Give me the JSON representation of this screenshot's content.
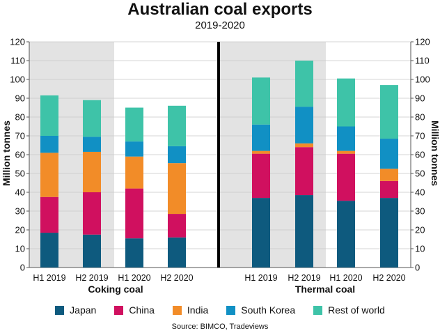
{
  "title": "Australian coal exports",
  "subtitle": "2019-2020",
  "source": "Source: BIMCO, Tradeviews",
  "colors": {
    "Japan": "#0e5a7e",
    "China": "#d0105f",
    "India": "#f28c28",
    "South Korea": "#1190c4",
    "Rest of world": "#3ec3a8"
  },
  "chart_data": {
    "type": "bar",
    "stacked": true,
    "ylabel": "Million tonnes",
    "ylim": [
      0,
      120
    ],
    "yticks": [
      0,
      10,
      20,
      30,
      40,
      50,
      60,
      70,
      80,
      90,
      100,
      110,
      120
    ],
    "series_names": [
      "Japan",
      "China",
      "India",
      "South Korea",
      "Rest of world"
    ],
    "panels": [
      {
        "group_label": "Coking coal",
        "categories": [
          "H1 2019",
          "H2 2019",
          "H1 2020",
          "H2 2020"
        ],
        "series": [
          {
            "name": "Japan",
            "values": [
              18.5,
              17.5,
              15.5,
              16
            ]
          },
          {
            "name": "China",
            "values": [
              19,
              22.5,
              26.5,
              12.5
            ]
          },
          {
            "name": "India",
            "values": [
              23.5,
              21.5,
              17,
              27
            ]
          },
          {
            "name": "South Korea",
            "values": [
              9,
              8,
              8,
              9
            ]
          },
          {
            "name": "Rest of world",
            "values": [
              21.5,
              19.5,
              18,
              21.5
            ]
          }
        ]
      },
      {
        "group_label": "Thermal coal",
        "categories": [
          "H1 2019",
          "H2 2019",
          "H1 2020",
          "H2 2020"
        ],
        "series": [
          {
            "name": "Japan",
            "values": [
              37,
              38.5,
              35.5,
              37
            ]
          },
          {
            "name": "China",
            "values": [
              23.5,
              25.5,
              25,
              9
            ]
          },
          {
            "name": "India",
            "values": [
              1.5,
              2,
              1.5,
              6.5
            ]
          },
          {
            "name": "South Korea",
            "values": [
              14,
              19.5,
              13,
              16
            ]
          },
          {
            "name": "Rest of world",
            "values": [
              25,
              24.5,
              25.5,
              28.5
            ]
          }
        ]
      }
    ]
  }
}
